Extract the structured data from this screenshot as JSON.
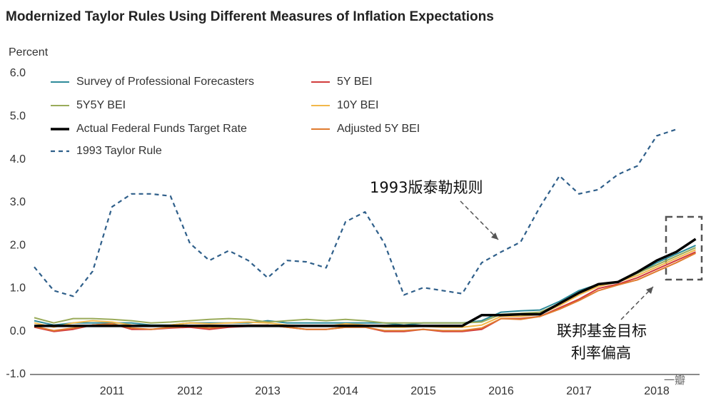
{
  "chart_data": {
    "type": "line",
    "title": "Modernized Taylor Rules Using Different Measures of Inflation Expectations",
    "y_label": "Percent",
    "annotations": [
      "1993版泰勒规则",
      "联邦基金目标",
      "利率偏高",
      "一瓣"
    ],
    "x": [
      2010,
      2010.25,
      2010.5,
      2010.75,
      2011,
      2011.25,
      2011.5,
      2011.75,
      2012,
      2012.25,
      2012.5,
      2012.75,
      2013,
      2013.25,
      2013.5,
      2013.75,
      2014,
      2014.25,
      2014.5,
      2014.75,
      2015,
      2015.25,
      2015.5,
      2015.75,
      2016,
      2016.25,
      2016.5,
      2016.75,
      2017,
      2017.25,
      2017.5,
      2017.75,
      2018,
      2018.25,
      2018.5
    ],
    "xlim": [
      2010,
      2018.55
    ],
    "xticks": [
      2011,
      2012,
      2013,
      2014,
      2015,
      2016,
      2017,
      2018
    ],
    "ylim": [
      -1.0,
      6.0
    ],
    "yticks": [
      {
        "value": -1.0,
        "label": "-1.0"
      },
      {
        "value": 0.0,
        "label": "0.0"
      },
      {
        "value": 1.0,
        "label": "1.0"
      },
      {
        "value": 2.0,
        "label": "2.0"
      },
      {
        "value": 3.0,
        "label": "3.0"
      },
      {
        "value": 4.0,
        "label": "4.0"
      },
      {
        "value": 5.0,
        "label": "5.0"
      },
      {
        "value": 6.0,
        "label": "6.0"
      }
    ],
    "legend": "upper left",
    "series": [
      {
        "name": "Survey of Professional Forecasters",
        "color": "#2e8b9a",
        "line_width": 2,
        "values": [
          0.25,
          0.15,
          0.2,
          0.2,
          0.2,
          0.2,
          0.15,
          0.15,
          0.2,
          0.2,
          0.2,
          0.2,
          0.25,
          0.2,
          0.2,
          0.2,
          0.2,
          0.2,
          0.2,
          0.15,
          0.2,
          0.2,
          0.2,
          0.25,
          0.45,
          0.48,
          0.5,
          0.7,
          0.95,
          1.1,
          1.15,
          1.35,
          1.6,
          1.8,
          2.0
        ]
      },
      {
        "name": "5Y BEI",
        "color": "#d23c3c",
        "line_width": 2,
        "values": [
          0.1,
          0.0,
          0.05,
          0.15,
          0.18,
          0.05,
          0.05,
          0.08,
          0.1,
          0.05,
          0.1,
          0.12,
          0.15,
          0.1,
          0.05,
          0.05,
          0.1,
          0.1,
          0.0,
          0.0,
          0.05,
          0.0,
          0.0,
          0.05,
          0.3,
          0.3,
          0.35,
          0.55,
          0.75,
          1.0,
          1.1,
          1.25,
          1.45,
          1.65,
          1.85
        ]
      },
      {
        "name": "5Y5Y BEI",
        "color": "#9aab5a",
        "line_width": 2,
        "values": [
          0.32,
          0.2,
          0.3,
          0.3,
          0.28,
          0.25,
          0.2,
          0.22,
          0.25,
          0.28,
          0.3,
          0.28,
          0.22,
          0.25,
          0.28,
          0.25,
          0.28,
          0.25,
          0.2,
          0.2,
          0.2,
          0.2,
          0.2,
          0.22,
          0.4,
          0.42,
          0.45,
          0.65,
          0.9,
          1.05,
          1.15,
          1.35,
          1.55,
          1.75,
          1.95
        ]
      },
      {
        "name": "10Y BEI",
        "color": "#f2b84b",
        "line_width": 2,
        "values": [
          0.2,
          0.1,
          0.2,
          0.25,
          0.22,
          0.15,
          0.12,
          0.15,
          0.2,
          0.18,
          0.2,
          0.22,
          0.2,
          0.15,
          0.12,
          0.12,
          0.18,
          0.15,
          0.1,
          0.1,
          0.12,
          0.1,
          0.1,
          0.15,
          0.35,
          0.35,
          0.4,
          0.6,
          0.85,
          1.05,
          1.15,
          1.3,
          1.5,
          1.7,
          1.9
        ]
      },
      {
        "name": "Actual Federal Funds Target Rate",
        "color": "#000000",
        "line_width": 3.5,
        "values": [
          0.13,
          0.13,
          0.13,
          0.13,
          0.13,
          0.13,
          0.13,
          0.13,
          0.13,
          0.13,
          0.13,
          0.13,
          0.13,
          0.13,
          0.13,
          0.13,
          0.13,
          0.13,
          0.13,
          0.13,
          0.13,
          0.13,
          0.13,
          0.38,
          0.38,
          0.4,
          0.4,
          0.65,
          0.9,
          1.1,
          1.15,
          1.38,
          1.65,
          1.85,
          2.15
        ]
      },
      {
        "name": "Adjusted 5Y BEI",
        "color": "#e07b2e",
        "line_width": 2,
        "values": [
          0.12,
          0.02,
          0.08,
          0.15,
          0.18,
          0.08,
          0.05,
          0.1,
          0.12,
          0.08,
          0.12,
          0.15,
          0.15,
          0.1,
          0.05,
          0.05,
          0.1,
          0.1,
          0.02,
          0.02,
          0.05,
          0.02,
          0.02,
          0.08,
          0.3,
          0.28,
          0.35,
          0.52,
          0.72,
          0.95,
          1.08,
          1.2,
          1.4,
          1.6,
          1.82
        ]
      },
      {
        "name": "1993 Taylor Rule",
        "color": "#2f5f8a",
        "line_width": 2.2,
        "dashed": true,
        "values": [
          1.5,
          0.95,
          0.82,
          1.4,
          2.9,
          3.2,
          3.2,
          3.15,
          2.05,
          1.65,
          1.88,
          1.65,
          1.25,
          1.65,
          1.62,
          1.48,
          2.55,
          2.78,
          2.05,
          0.85,
          1.02,
          0.95,
          0.88,
          1.6,
          1.85,
          2.08,
          2.9,
          3.62,
          3.2,
          3.3,
          3.65,
          3.85,
          4.55,
          4.7,
          null
        ]
      }
    ]
  }
}
